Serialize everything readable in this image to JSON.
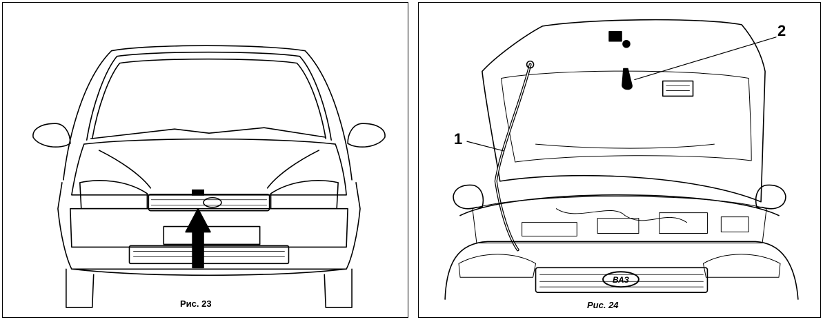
{
  "figures": [
    {
      "caption": "Рис. 23"
    },
    {
      "caption": "Рис. 24"
    }
  ],
  "callouts": [
    "1",
    "2"
  ],
  "badge_text": "ВАЗ",
  "colors": {
    "line": "#000000",
    "background": "#ffffff"
  }
}
